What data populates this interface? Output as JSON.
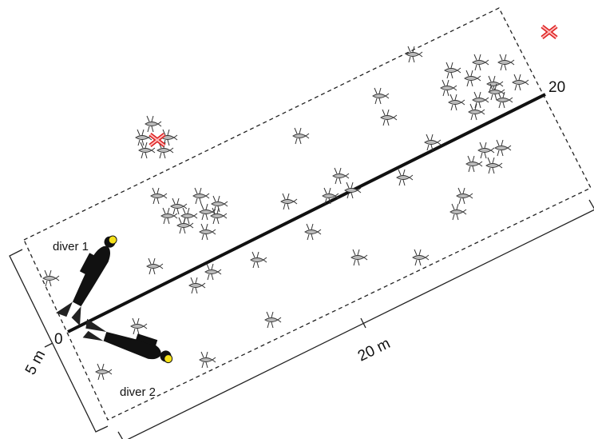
{
  "labels": {
    "diver1": "diver 1",
    "diver2": "diver 2",
    "start": "0",
    "end": "20",
    "length": "20 m",
    "width": "5 m"
  }
}
